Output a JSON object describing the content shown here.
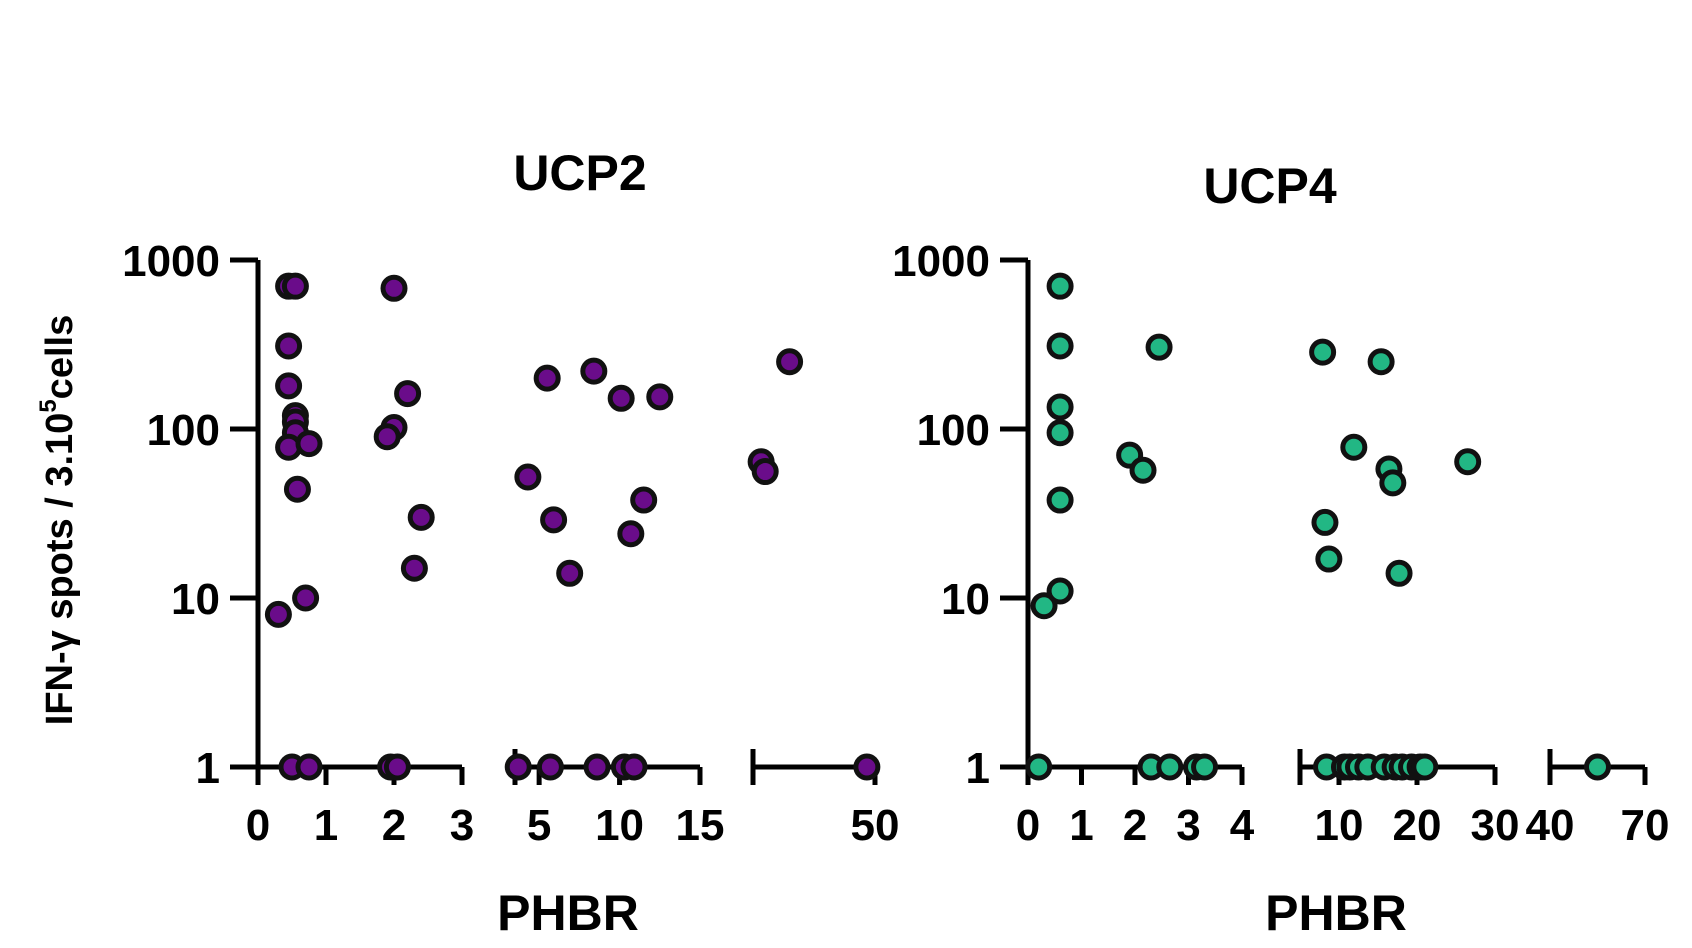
{
  "ylabel": {
    "prefix": "IFN-γ spots / 3.10",
    "sup": "5",
    "suffix": "cells"
  },
  "chart_data": [
    {
      "type": "scatter",
      "title": "UCP2",
      "xlabel": "PHBR",
      "yscale": "log",
      "ylim": [
        1,
        1000
      ],
      "yticks": [
        1,
        10,
        100,
        1000
      ],
      "ytick_labels": [
        "1",
        "10",
        "100",
        "1000"
      ],
      "x_axis_segments": [
        [
          0,
          3
        ],
        [
          3.5,
          15
        ],
        [
          20,
          50
        ]
      ],
      "xticks": [
        0,
        1,
        2,
        3,
        5,
        10,
        15,
        50
      ],
      "xtick_labels": [
        "0",
        "1",
        "2",
        "3",
        "5",
        "10",
        "15",
        "50"
      ],
      "marker_color": "#6a0c8a",
      "edge_color": "#111111",
      "points": [
        {
          "x": 0.3,
          "y": 8
        },
        {
          "x": 0.45,
          "y": 700
        },
        {
          "x": 0.55,
          "y": 700
        },
        {
          "x": 0.45,
          "y": 310
        },
        {
          "x": 0.45,
          "y": 180
        },
        {
          "x": 0.55,
          "y": 120
        },
        {
          "x": 0.55,
          "y": 110
        },
        {
          "x": 0.55,
          "y": 95
        },
        {
          "x": 0.45,
          "y": 78
        },
        {
          "x": 0.75,
          "y": 82
        },
        {
          "x": 0.58,
          "y": 44
        },
        {
          "x": 0.7,
          "y": 10
        },
        {
          "x": 0.5,
          "y": 1
        },
        {
          "x": 0.75,
          "y": 1
        },
        {
          "x": 2.0,
          "y": 680
        },
        {
          "x": 2.2,
          "y": 162
        },
        {
          "x": 2.0,
          "y": 102
        },
        {
          "x": 1.9,
          "y": 90
        },
        {
          "x": 2.4,
          "y": 30
        },
        {
          "x": 2.3,
          "y": 15
        },
        {
          "x": 1.95,
          "y": 1
        },
        {
          "x": 2.05,
          "y": 1
        },
        {
          "x": 3.7,
          "y": 1
        },
        {
          "x": 4.3,
          "y": 52
        },
        {
          "x": 5.5,
          "y": 200
        },
        {
          "x": 5.9,
          "y": 29
        },
        {
          "x": 5.7,
          "y": 1
        },
        {
          "x": 6.9,
          "y": 14
        },
        {
          "x": 8.4,
          "y": 220
        },
        {
          "x": 8.6,
          "y": 1
        },
        {
          "x": 10.1,
          "y": 152
        },
        {
          "x": 10.3,
          "y": 1
        },
        {
          "x": 10.7,
          "y": 24
        },
        {
          "x": 10.9,
          "y": 1
        },
        {
          "x": 11.5,
          "y": 38
        },
        {
          "x": 12.5,
          "y": 155
        },
        {
          "x": 22,
          "y": 64
        },
        {
          "x": 23,
          "y": 56
        },
        {
          "x": 29,
          "y": 250
        },
        {
          "x": 48,
          "y": 1
        }
      ]
    },
    {
      "type": "scatter",
      "title": "UCP4",
      "xlabel": "PHBR",
      "yscale": "log",
      "ylim": [
        1,
        1000
      ],
      "yticks": [
        1,
        10,
        100,
        1000
      ],
      "ytick_labels": [
        "1",
        "10",
        "100",
        "1000"
      ],
      "x_axis_segments": [
        [
          0,
          4
        ],
        [
          5,
          30
        ],
        [
          40,
          70
        ]
      ],
      "xticks": [
        0,
        1,
        2,
        3,
        4,
        10,
        20,
        30,
        40,
        70
      ],
      "xtick_labels": [
        "0",
        "1",
        "2",
        "3",
        "4",
        "10",
        "20",
        "30",
        "40",
        "70"
      ],
      "marker_color": "#22b784",
      "edge_color": "#111111",
      "points": [
        {
          "x": 0.3,
          "y": 9
        },
        {
          "x": 0.6,
          "y": 700
        },
        {
          "x": 0.6,
          "y": 310
        },
        {
          "x": 0.6,
          "y": 135
        },
        {
          "x": 0.6,
          "y": 95
        },
        {
          "x": 0.6,
          "y": 38
        },
        {
          "x": 0.6,
          "y": 11
        },
        {
          "x": 0.2,
          "y": 1
        },
        {
          "x": 1.9,
          "y": 70
        },
        {
          "x": 2.15,
          "y": 57
        },
        {
          "x": 2.45,
          "y": 305
        },
        {
          "x": 2.3,
          "y": 1
        },
        {
          "x": 2.65,
          "y": 1
        },
        {
          "x": 3.15,
          "y": 1
        },
        {
          "x": 3.3,
          "y": 1
        },
        {
          "x": 7.9,
          "y": 285
        },
        {
          "x": 8.2,
          "y": 28
        },
        {
          "x": 8.7,
          "y": 17
        },
        {
          "x": 8.4,
          "y": 1
        },
        {
          "x": 10.7,
          "y": 1
        },
        {
          "x": 11.4,
          "y": 1
        },
        {
          "x": 11.9,
          "y": 78
        },
        {
          "x": 12.5,
          "y": 1
        },
        {
          "x": 13.7,
          "y": 1
        },
        {
          "x": 15.4,
          "y": 250
        },
        {
          "x": 16.4,
          "y": 58
        },
        {
          "x": 16.9,
          "y": 48
        },
        {
          "x": 15.8,
          "y": 1
        },
        {
          "x": 17.2,
          "y": 1
        },
        {
          "x": 17.7,
          "y": 14
        },
        {
          "x": 18.1,
          "y": 1
        },
        {
          "x": 19.3,
          "y": 1
        },
        {
          "x": 20.4,
          "y": 1
        },
        {
          "x": 21.0,
          "y": 1
        },
        {
          "x": 26.5,
          "y": 64
        },
        {
          "x": 55,
          "y": 1
        }
      ]
    }
  ]
}
